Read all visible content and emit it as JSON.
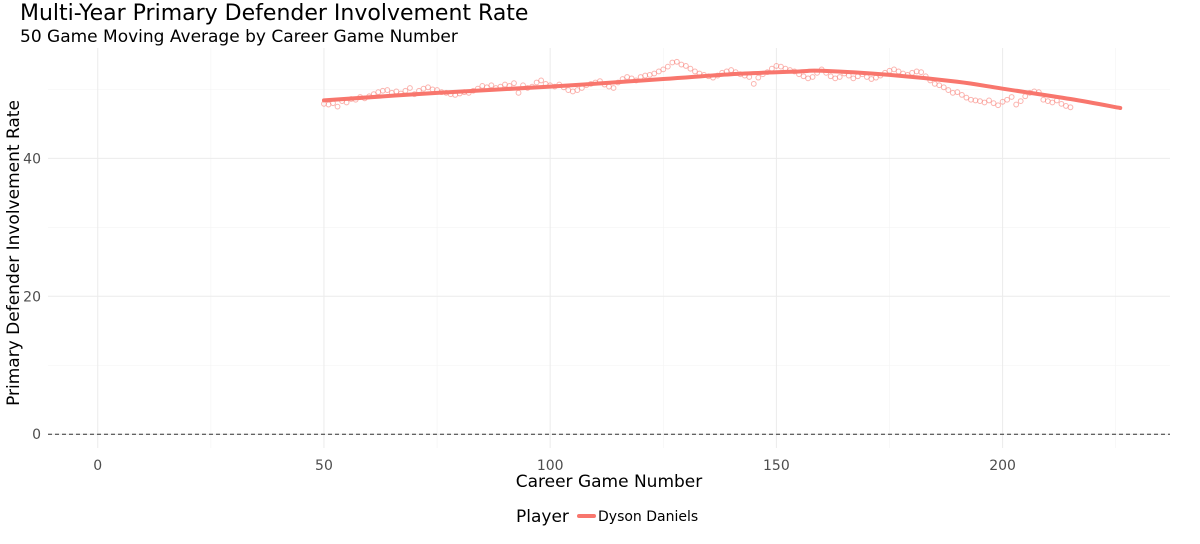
{
  "chart_data": {
    "type": "line",
    "title": "Multi-Year Primary Defender Involvement Rate",
    "subtitle": "50 Game Moving Average by Career Game Number",
    "xlabel": "Career Game Number",
    "ylabel": "Primary Defender Involvement Rate",
    "xlim": [
      -11,
      237
    ],
    "ylim": [
      -2,
      56
    ],
    "x_ticks": [
      0,
      50,
      100,
      150,
      200
    ],
    "x_tick_labels": [
      "0",
      "50",
      "100",
      "150",
      "200"
    ],
    "y_ticks": [
      0,
      20,
      40
    ],
    "y_tick_labels": [
      "0",
      "20",
      "40"
    ],
    "grid": true,
    "reference_line": {
      "y": 0,
      "style": "dashed"
    },
    "legend": {
      "title": "Player",
      "position": "bottom"
    },
    "colors": {
      "series": "#f8766d"
    },
    "series": [
      {
        "name": "Dyson Daniels",
        "point_start": 50,
        "point_values": [
          47.9,
          47.8,
          48.0,
          47.5,
          48.3,
          48.1,
          48.6,
          48.5,
          48.9,
          48.7,
          49.0,
          49.3,
          49.6,
          49.8,
          49.9,
          49.5,
          49.7,
          49.4,
          49.8,
          50.2,
          49.3,
          49.8,
          50.1,
          50.3,
          50.0,
          49.9,
          49.6,
          49.5,
          49.3,
          49.2,
          49.4,
          49.6,
          49.5,
          49.8,
          50.1,
          50.5,
          50.3,
          50.6,
          50.2,
          50.4,
          50.7,
          50.5,
          50.9,
          49.5,
          50.6,
          50.2,
          50.4,
          51.0,
          51.3,
          50.8,
          50.6,
          50.4,
          50.7,
          50.3,
          49.9,
          49.7,
          49.9,
          50.2,
          50.6,
          50.8,
          51.0,
          51.2,
          50.7,
          50.4,
          50.2,
          51.0,
          51.5,
          51.8,
          51.6,
          51.3,
          51.8,
          52.0,
          52.1,
          52.3,
          52.6,
          52.9,
          53.3,
          53.9,
          54.0,
          53.6,
          53.4,
          53.0,
          52.6,
          52.3,
          52.1,
          51.9,
          51.7,
          52.0,
          52.4,
          52.6,
          52.8,
          52.5,
          52.2,
          52.0,
          51.8,
          50.8,
          51.7,
          52.2,
          52.5,
          53.0,
          53.4,
          53.3,
          53.0,
          52.8,
          52.6,
          52.2,
          51.9,
          51.6,
          51.8,
          52.4,
          52.9,
          52.4,
          51.9,
          51.6,
          51.8,
          52.3,
          52.0,
          51.6,
          51.9,
          52.2,
          51.8,
          51.5,
          51.7,
          52.0,
          52.4,
          52.7,
          52.9,
          52.6,
          52.3,
          52.1,
          52.4,
          52.6,
          52.5,
          51.9,
          51.3,
          50.8,
          50.6,
          50.3,
          49.9,
          49.5,
          49.6,
          49.2,
          48.8,
          48.5,
          48.4,
          48.3,
          48.1,
          48.4,
          48.0,
          47.7,
          48.2,
          48.5,
          48.9,
          47.8,
          48.3,
          49.0,
          49.5,
          49.7,
          49.6,
          48.5,
          48.3,
          48.1,
          48.4,
          47.9,
          47.6,
          47.4
        ],
        "trend_x": [
          50,
          75,
          100,
          125,
          140,
          155,
          160,
          175,
          190,
          200,
          215,
          226
        ],
        "trend_y": [
          48.4,
          49.5,
          50.4,
          51.5,
          52.2,
          52.6,
          52.7,
          52.1,
          51.1,
          50.1,
          48.6,
          47.3
        ]
      }
    ]
  }
}
